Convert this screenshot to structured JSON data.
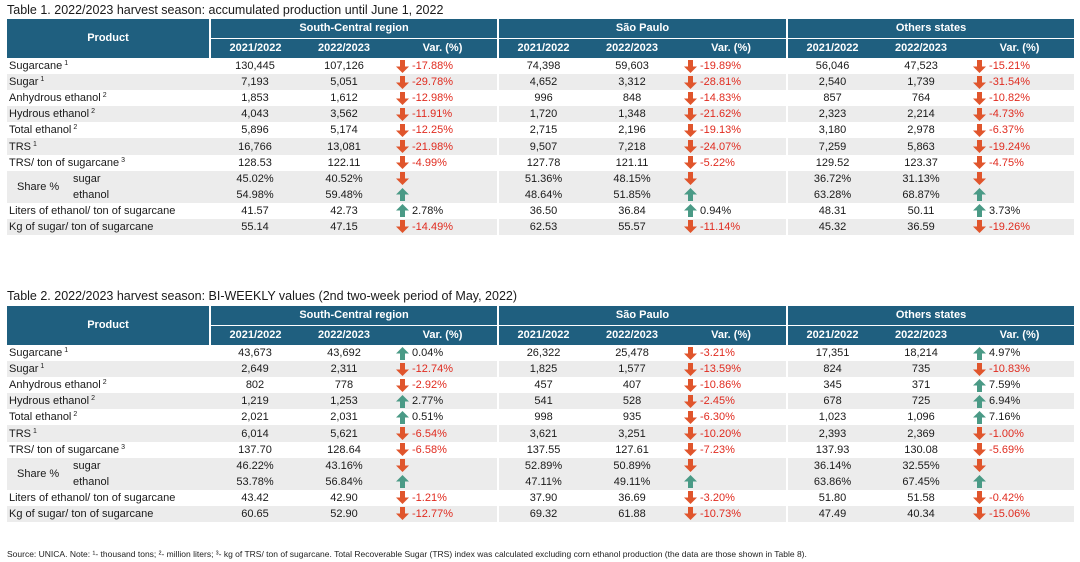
{
  "colors": {
    "header_bg": "#1f5f7f",
    "alt_row": "#ececec",
    "down_arrow": "#e0552c",
    "up_arrow": "#4a9a86",
    "negative_text": "#e02b1f"
  },
  "icons": {
    "down": "down-arrow-icon",
    "up": "up-arrow-icon"
  },
  "tables": [
    {
      "caption": "Table 1. 2022/2023 harvest season: accumulated production until June 1, 2022",
      "product_header": "Product",
      "groups": [
        "South-Central region",
        "São Paulo",
        "Others states"
      ],
      "subheaders": [
        "2021/2022",
        "2022/2023",
        "Var. (%)"
      ],
      "rows": [
        {
          "label": "Sugarcane",
          "sup": "1",
          "cells": [
            [
              "130,445",
              "107,126",
              "-17.88%",
              "down"
            ],
            [
              "74,398",
              "59,603",
              "-19.89%",
              "down"
            ],
            [
              "56,046",
              "47,523",
              "-15.21%",
              "down"
            ]
          ]
        },
        {
          "label": "Sugar",
          "sup": "1",
          "cells": [
            [
              "7,193",
              "5,051",
              "-29.78%",
              "down"
            ],
            [
              "4,652",
              "3,312",
              "-28.81%",
              "down"
            ],
            [
              "2,540",
              "1,739",
              "-31.54%",
              "down"
            ]
          ]
        },
        {
          "label": "Anhydrous ethanol",
          "sup": "2",
          "cells": [
            [
              "1,853",
              "1,612",
              "-12.98%",
              "down"
            ],
            [
              "996",
              "848",
              "-14.83%",
              "down"
            ],
            [
              "857",
              "764",
              "-10.82%",
              "down"
            ]
          ]
        },
        {
          "label": "Hydrous ethanol",
          "sup": "2",
          "cells": [
            [
              "4,043",
              "3,562",
              "-11.91%",
              "down"
            ],
            [
              "1,720",
              "1,348",
              "-21.62%",
              "down"
            ],
            [
              "2,323",
              "2,214",
              "-4.73%",
              "down"
            ]
          ]
        },
        {
          "label": "Total ethanol",
          "sup": "2",
          "cells": [
            [
              "5,896",
              "5,174",
              "-12.25%",
              "down"
            ],
            [
              "2,715",
              "2,196",
              "-19.13%",
              "down"
            ],
            [
              "3,180",
              "2,978",
              "-6.37%",
              "down"
            ]
          ]
        },
        {
          "label": "TRS",
          "sup": "1",
          "cells": [
            [
              "16,766",
              "13,081",
              "-21.98%",
              "down"
            ],
            [
              "9,507",
              "7,218",
              "-24.07%",
              "down"
            ],
            [
              "7,259",
              "5,863",
              "-19.24%",
              "down"
            ]
          ]
        },
        {
          "label": "TRS/ ton of sugarcane",
          "sup": "3",
          "cells": [
            [
              "128.53",
              "122.11",
              "-4.99%",
              "down"
            ],
            [
              "127.78",
              "121.11",
              "-5.22%",
              "down"
            ],
            [
              "129.52",
              "123.37",
              "-4.75%",
              "down"
            ]
          ]
        },
        {
          "share": true,
          "label": "Share %",
          "sub1": "sugar",
          "sub2": "ethanol",
          "cells1": [
            [
              "45.02%",
              "40.52%",
              "",
              "down"
            ],
            [
              "51.36%",
              "48.15%",
              "",
              "down"
            ],
            [
              "36.72%",
              "31.13%",
              "",
              "down"
            ]
          ],
          "cells2": [
            [
              "54.98%",
              "59.48%",
              "",
              "up"
            ],
            [
              "48.64%",
              "51.85%",
              "",
              "up"
            ],
            [
              "63.28%",
              "68.87%",
              "",
              "up"
            ]
          ]
        },
        {
          "label": "Liters of ethanol/ ton of sugarcane",
          "sup": "",
          "cells": [
            [
              "41.57",
              "42.73",
              "2.78%",
              "up"
            ],
            [
              "36.50",
              "36.84",
              "0.94%",
              "up"
            ],
            [
              "48.31",
              "50.11",
              "3.73%",
              "up"
            ]
          ]
        },
        {
          "label": "Kg of sugar/ ton of sugarcane",
          "sup": "",
          "cells": [
            [
              "55.14",
              "47.15",
              "-14.49%",
              "down"
            ],
            [
              "62.53",
              "55.57",
              "-11.14%",
              "down"
            ],
            [
              "45.32",
              "36.59",
              "-19.26%",
              "down"
            ]
          ]
        }
      ]
    },
    {
      "caption": "Table 2. 2022/2023 harvest season: BI-WEEKLY values (2nd two-week period of May, 2022)",
      "product_header": "Product",
      "groups": [
        "South-Central region",
        "São Paulo",
        "Others states"
      ],
      "subheaders": [
        "2021/2022",
        "2022/2023",
        "Var. (%)"
      ],
      "rows": [
        {
          "label": "Sugarcane",
          "sup": "1",
          "cells": [
            [
              "43,673",
              "43,692",
              "0.04%",
              "up"
            ],
            [
              "26,322",
              "25,478",
              "-3.21%",
              "down"
            ],
            [
              "17,351",
              "18,214",
              "4.97%",
              "up"
            ]
          ]
        },
        {
          "label": "Sugar",
          "sup": "1",
          "cells": [
            [
              "2,649",
              "2,311",
              "-12.74%",
              "down"
            ],
            [
              "1,825",
              "1,577",
              "-13.59%",
              "down"
            ],
            [
              "824",
              "735",
              "-10.83%",
              "down"
            ]
          ]
        },
        {
          "label": "Anhydrous ethanol",
          "sup": "2",
          "cells": [
            [
              "802",
              "778",
              "-2.92%",
              "down"
            ],
            [
              "457",
              "407",
              "-10.86%",
              "down"
            ],
            [
              "345",
              "371",
              "7.59%",
              "up"
            ]
          ]
        },
        {
          "label": "Hydrous ethanol",
          "sup": "2",
          "cells": [
            [
              "1,219",
              "1,253",
              "2.77%",
              "up"
            ],
            [
              "541",
              "528",
              "-2.45%",
              "down"
            ],
            [
              "678",
              "725",
              "6.94%",
              "up"
            ]
          ]
        },
        {
          "label": "Total ethanol",
          "sup": "2",
          "cells": [
            [
              "2,021",
              "2,031",
              "0.51%",
              "up"
            ],
            [
              "998",
              "935",
              "-6.30%",
              "down"
            ],
            [
              "1,023",
              "1,096",
              "7.16%",
              "up"
            ]
          ]
        },
        {
          "label": "TRS",
          "sup": "1",
          "cells": [
            [
              "6,014",
              "5,621",
              "-6.54%",
              "down"
            ],
            [
              "3,621",
              "3,251",
              "-10.20%",
              "down"
            ],
            [
              "2,393",
              "2,369",
              "-1.00%",
              "down"
            ]
          ]
        },
        {
          "label": "TRS/ ton of sugarcane",
          "sup": "3",
          "cells": [
            [
              "137.70",
              "128.64",
              "-6.58%",
              "down"
            ],
            [
              "137.55",
              "127.61",
              "-7.23%",
              "down"
            ],
            [
              "137.93",
              "130.08",
              "-5.69%",
              "down"
            ]
          ]
        },
        {
          "share": true,
          "label": "Share %",
          "sub1": "sugar",
          "sub2": "ethanol",
          "cells1": [
            [
              "46.22%",
              "43.16%",
              "",
              "down"
            ],
            [
              "52.89%",
              "50.89%",
              "",
              "down"
            ],
            [
              "36.14%",
              "32.55%",
              "",
              "down"
            ]
          ],
          "cells2": [
            [
              "53.78%",
              "56.84%",
              "",
              "up"
            ],
            [
              "47.11%",
              "49.11%",
              "",
              "up"
            ],
            [
              "63.86%",
              "67.45%",
              "",
              "up"
            ]
          ]
        },
        {
          "label": "Liters of ethanol/ ton of sugarcane",
          "sup": "",
          "cells": [
            [
              "43.42",
              "42.90",
              "-1.21%",
              "down"
            ],
            [
              "37.90",
              "36.69",
              "-3.20%",
              "down"
            ],
            [
              "51.80",
              "51.58",
              "-0.42%",
              "down"
            ]
          ]
        },
        {
          "label": "Kg of sugar/ ton of sugarcane",
          "sup": "",
          "cells": [
            [
              "60.65",
              "52.90",
              "-12.77%",
              "down"
            ],
            [
              "69.32",
              "61.88",
              "-10.73%",
              "down"
            ],
            [
              "47.49",
              "40.34",
              "-15.06%",
              "down"
            ]
          ]
        }
      ]
    }
  ],
  "source_note": "Source: UNICA. Note: ¹- thousand tons; ²- million liters; ³- kg of TRS/ ton of sugarcane. Total Recoverable Sugar (TRS) index was calculated excluding corn ethanol production (the data are those shown in Table 8)."
}
